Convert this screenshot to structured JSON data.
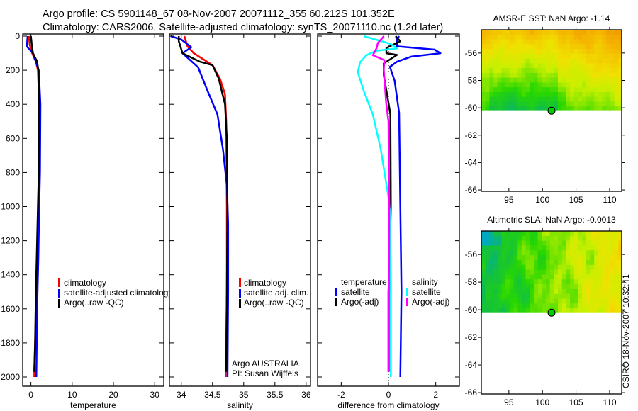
{
  "header": {
    "line1": "Argo profile: CS 5901148_67 08-Nov-2007 20071112_355 60.212S 101.352E",
    "line2": "Climatology: CARS2006. Satellite-adjusted climatology: synTS_20071110.nc (1.2d later)"
  },
  "footer": {
    "credit": "CSIRO 18-Nov-2007 10:32:41",
    "argo_org": "Argo AUSTRALIA",
    "pi": "PI: Susan Wijffels"
  },
  "chart_data": [
    {
      "type": "line",
      "id": "temperature",
      "xlabel": "temperature",
      "ylabel": "",
      "xlim": [
        -2,
        32.2
      ],
      "ylim": [
        2054,
        -12.5
      ],
      "xticks": [
        0,
        10,
        20,
        30
      ],
      "xtick_labels": [
        "0",
        "10",
        "20",
        "30"
      ],
      "yticks": [
        0,
        200,
        400,
        600,
        800,
        1000,
        1200,
        1400,
        1600,
        1800,
        2000
      ],
      "ytick_labels": [
        "0",
        "200",
        "400",
        "600",
        "800",
        "1000",
        "1200",
        "1400",
        "1600",
        "1800",
        "2000"
      ],
      "legend_position": "center-right",
      "series": [
        {
          "name": "climatology",
          "color": "#ff0000",
          "points": [
            [
              -0.5,
              0
            ],
            [
              -0.3,
              50
            ],
            [
              0.3,
              100
            ],
            [
              1.2,
              150
            ],
            [
              1.7,
              200
            ],
            [
              2.0,
              400
            ],
            [
              1.9,
              800
            ],
            [
              1.8,
              1000
            ],
            [
              1.5,
              1300
            ],
            [
              1.3,
              1500
            ],
            [
              1.0,
              1800
            ],
            [
              0.8,
              2000
            ]
          ]
        },
        {
          "name": "satellite-adjusted climatology",
          "color": "#0000ff",
          "points": [
            [
              -0.8,
              0
            ],
            [
              -1.0,
              60
            ],
            [
              0.5,
              100
            ],
            [
              1.9,
              200
            ],
            [
              2.3,
              400
            ],
            [
              2.2,
              800
            ],
            [
              2.0,
              1000
            ],
            [
              1.8,
              1300
            ],
            [
              1.6,
              1500
            ],
            [
              1.4,
              1800
            ],
            [
              1.3,
              2000
            ]
          ]
        },
        {
          "name": "Argo(..raw -QC)",
          "color": "#000000",
          "points": [
            [
              0.0,
              0
            ],
            [
              0.2,
              50
            ],
            [
              0.5,
              100
            ],
            [
              1.5,
              150
            ],
            [
              1.8,
              200
            ],
            [
              2.0,
              400
            ],
            [
              1.9,
              800
            ],
            [
              1.7,
              1000
            ],
            [
              1.4,
              1300
            ],
            [
              1.2,
              1500
            ],
            [
              1.0,
              1800
            ],
            [
              0.8,
              1970
            ]
          ]
        }
      ]
    },
    {
      "type": "line",
      "id": "salinity",
      "xlabel": "salinity",
      "ylabel": "",
      "xlim": [
        33.81,
        36.07
      ],
      "ylim": [
        2054,
        -12.5
      ],
      "xticks": [
        34,
        34.5,
        35,
        35.5,
        36
      ],
      "xtick_labels": [
        "34",
        "34.5",
        "35",
        "35.5",
        "36"
      ],
      "yticks": [
        0,
        200,
        400,
        600,
        800,
        1000,
        1200,
        1400,
        1600,
        1800,
        2000
      ],
      "legend_position": "center-right",
      "series": [
        {
          "name": "climatology",
          "color": "#ff0000",
          "points": [
            [
              34.05,
              0
            ],
            [
              34.1,
              60
            ],
            [
              34.2,
              100
            ],
            [
              34.5,
              170
            ],
            [
              34.62,
              250
            ],
            [
              34.7,
              340
            ],
            [
              34.72,
              500
            ],
            [
              34.73,
              1000
            ],
            [
              34.73,
              1500
            ],
            [
              34.72,
              1800
            ],
            [
              34.71,
              2000
            ]
          ]
        },
        {
          "name": "satellite adj. clim.",
          "color": "#0000ff",
          "points": [
            [
              33.83,
              0
            ],
            [
              34.0,
              20
            ],
            [
              34.16,
              65
            ],
            [
              34.02,
              100
            ],
            [
              34.27,
              183
            ],
            [
              34.42,
              320
            ],
            [
              34.58,
              460
            ],
            [
              34.67,
              670
            ],
            [
              34.73,
              877
            ],
            [
              34.75,
              1100
            ],
            [
              34.75,
              1500
            ],
            [
              34.74,
              2000
            ]
          ]
        },
        {
          "name": "Argo(..raw -QC)",
          "color": "#000000",
          "points": [
            [
              33.96,
              0
            ],
            [
              33.96,
              30
            ],
            [
              34.02,
              100
            ],
            [
              34.3,
              150
            ],
            [
              34.5,
              170
            ],
            [
              34.6,
              250
            ],
            [
              34.7,
              400
            ],
            [
              34.73,
              600
            ],
            [
              34.74,
              1000
            ],
            [
              34.73,
              1500
            ],
            [
              34.72,
              1970
            ]
          ]
        }
      ]
    },
    {
      "type": "line",
      "id": "difference",
      "xlabel": "difference from climatology",
      "ylabel": "",
      "xlim": [
        -3,
        3
      ],
      "ylim": [
        2054,
        -12.5
      ],
      "xticks": [
        -2,
        0,
        2
      ],
      "xtick_labels": [
        "-2",
        "0",
        "2"
      ],
      "yticks": [
        0,
        200,
        400,
        600,
        800,
        1000,
        1200,
        1400,
        1600,
        1800,
        2000
      ],
      "legend_position": "center",
      "legend_groups": [
        "temperature",
        "salinity"
      ],
      "series": [
        {
          "name": "satellite",
          "group": "temperature",
          "color": "#0000ff",
          "points": [
            [
              0.45,
              0
            ],
            [
              0.36,
              17
            ],
            [
              0.36,
              60
            ],
            [
              1.95,
              79
            ],
            [
              2.2,
              100
            ],
            [
              0.96,
              120
            ],
            [
              0.36,
              150
            ],
            [
              0.06,
              180
            ],
            [
              0.26,
              262
            ],
            [
              0.45,
              450
            ],
            [
              0.5,
              1000
            ],
            [
              0.55,
              1500
            ],
            [
              0.5,
              2000
            ]
          ]
        },
        {
          "name": "Argo(-adj)",
          "group": "temperature",
          "color": "#000000",
          "points": [
            [
              0.3,
              0
            ],
            [
              0.5,
              30
            ],
            [
              -0.09,
              70
            ],
            [
              -0.09,
              100
            ],
            [
              0.36,
              110
            ],
            [
              -0.2,
              160
            ],
            [
              -0.2,
              227
            ],
            [
              0.0,
              391
            ],
            [
              0.08,
              460
            ],
            [
              0.1,
              1000
            ],
            [
              0.05,
              1300
            ],
            [
              0.0,
              1500
            ],
            [
              0.0,
              1970
            ]
          ]
        },
        {
          "name": "satellite",
          "group": "salinity",
          "color": "#00ffff",
          "points": [
            [
              -1.05,
              0
            ],
            [
              0.06,
              44
            ],
            [
              0.36,
              72
            ],
            [
              -0.54,
              86
            ],
            [
              -0.93,
              112
            ],
            [
              -1.2,
              153
            ],
            [
              -1.3,
              211
            ],
            [
              -1.05,
              320
            ],
            [
              -0.66,
              460
            ],
            [
              -0.32,
              668
            ],
            [
              0.0,
              945
            ],
            [
              0.07,
              1044
            ],
            [
              0.1,
              1500
            ],
            [
              0.1,
              2000
            ]
          ]
        },
        {
          "name": "Argo(-adj)",
          "group": "salinity",
          "color": "#ff00ff",
          "points": [
            [
              -0.19,
              0
            ],
            [
              -0.45,
              40
            ],
            [
              -0.5,
              70
            ],
            [
              -0.66,
              112
            ],
            [
              -0.17,
              141
            ],
            [
              -0.2,
              195
            ],
            [
              -0.1,
              391
            ],
            [
              0.0,
              500
            ],
            [
              0.03,
              1000
            ],
            [
              0.02,
              1500
            ],
            [
              0.02,
              1970
            ]
          ]
        }
      ]
    },
    {
      "type": "heatmap",
      "id": "sst-map",
      "title": "AMSR-E SST: NaN Argo: -1.14",
      "xlim": [
        90.9,
        111.8
      ],
      "ylim": [
        -66.1,
        -54.3
      ],
      "data_max_lat": -54.3,
      "data_min_lat": -60.15,
      "xticks": [
        95,
        100,
        105,
        110
      ],
      "xtick_labels": [
        "95",
        "100",
        "105",
        "110"
      ],
      "yticks": [
        -56,
        -58,
        -60,
        -62,
        -64,
        -66
      ],
      "ytick_labels": [
        "-56",
        "-58",
        "-60",
        "-62",
        "-64",
        "-66"
      ],
      "argo_position": [
        101.352,
        -60.212
      ],
      "marker_color": "#00cc00"
    },
    {
      "type": "heatmap",
      "id": "sla-map",
      "title": "Altimetric SLA: NaN Argo: -0.0013",
      "xlim": [
        90.9,
        111.8
      ],
      "ylim": [
        -66.1,
        -54.3
      ],
      "data_max_lat": -54.3,
      "data_min_lat": -60.15,
      "xticks": [
        95,
        100,
        105,
        110
      ],
      "xtick_labels": [
        "95",
        "100",
        "105",
        "110"
      ],
      "yticks": [
        -56,
        -58,
        -60,
        -62,
        -64,
        -66
      ],
      "ytick_labels": [
        "-56",
        "-58",
        "-60",
        "-62",
        "-64",
        "-66"
      ],
      "argo_position": [
        101.352,
        -60.212
      ],
      "marker_color": "#00cc00"
    }
  ]
}
